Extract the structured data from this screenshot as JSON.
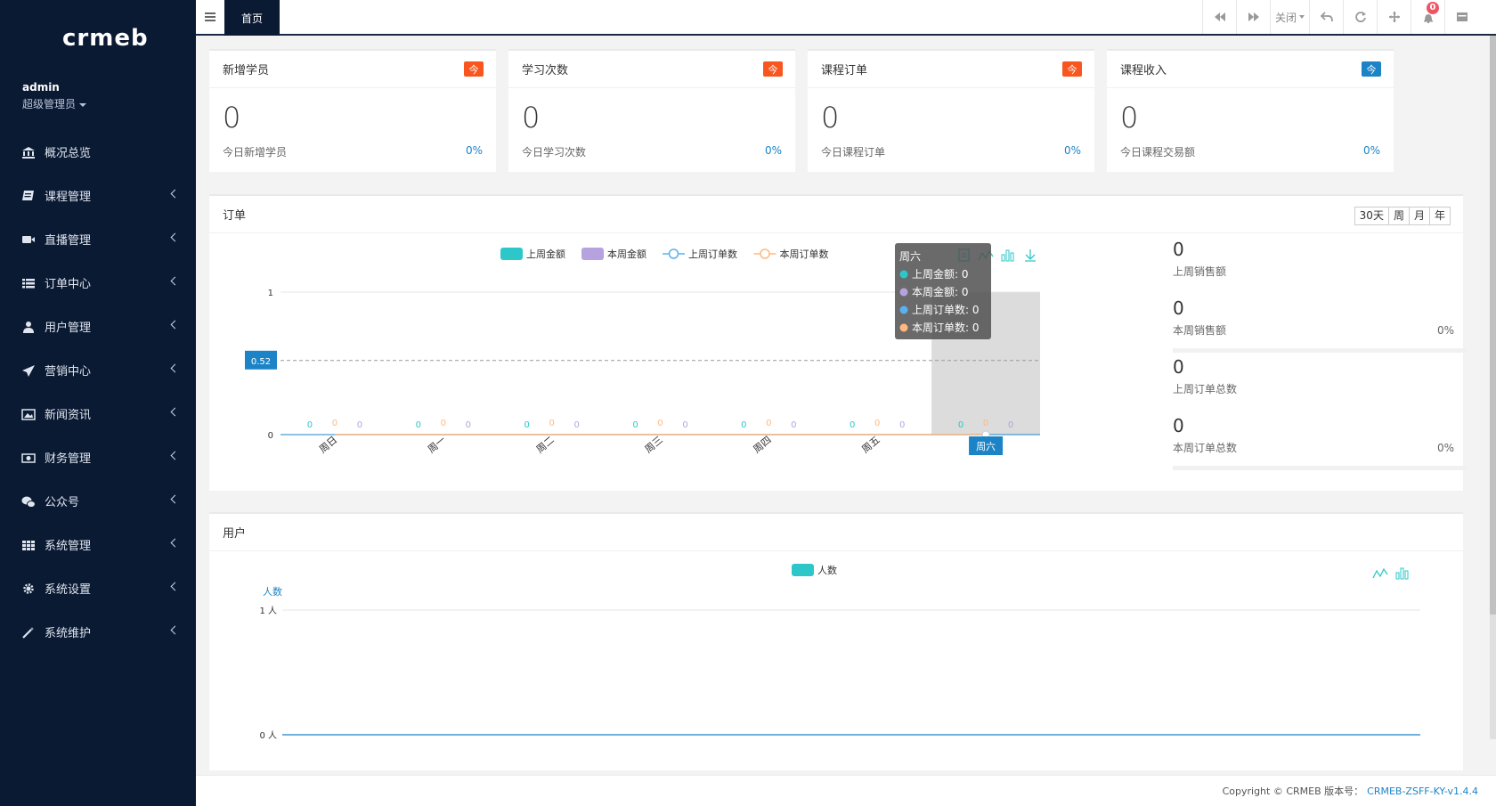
{
  "sidebar": {
    "logo": "crmeb",
    "user_name": "admin",
    "user_role": "超级管理员",
    "menu": [
      {
        "label": "概况总览",
        "icon": "bank-icon",
        "has_children": false
      },
      {
        "label": "课程管理",
        "icon": "book-icon",
        "has_children": true
      },
      {
        "label": "直播管理",
        "icon": "video-icon",
        "has_children": true
      },
      {
        "label": "订单中心",
        "icon": "list-icon",
        "has_children": true
      },
      {
        "label": "用户管理",
        "icon": "user-icon",
        "has_children": true
      },
      {
        "label": "营销中心",
        "icon": "paper-plane-icon",
        "has_children": true
      },
      {
        "label": "新闻资讯",
        "icon": "image-icon",
        "has_children": true
      },
      {
        "label": "财务管理",
        "icon": "money-icon",
        "has_children": true
      },
      {
        "label": "公众号",
        "icon": "wechat-icon",
        "has_children": true
      },
      {
        "label": "系统管理",
        "icon": "grid-icon",
        "has_children": true
      },
      {
        "label": "系统设置",
        "icon": "gear-icon",
        "has_children": true
      },
      {
        "label": "系统维护",
        "icon": "magic-icon",
        "has_children": true
      }
    ]
  },
  "topbar": {
    "home_tab": "首页",
    "close_label": "关闭",
    "notification_count": "0"
  },
  "stats": [
    {
      "title": "新增学员",
      "tag": "今",
      "tag_color": "#f8561e",
      "value": "0",
      "desc": "今日新增学员",
      "pct": "0%"
    },
    {
      "title": "学习次数",
      "tag": "今",
      "tag_color": "#f8561e",
      "value": "0",
      "desc": "今日学习次数",
      "pct": "0%"
    },
    {
      "title": "课程订单",
      "tag": "今",
      "tag_color": "#f8561e",
      "value": "0",
      "desc": "今日课程订单",
      "pct": "0%"
    },
    {
      "title": "课程收入",
      "tag": "今",
      "tag_color": "#1c84c6",
      "value": "0",
      "desc": "今日课程交易额",
      "pct": "0%"
    }
  ],
  "orders": {
    "title": "订单",
    "ranges": [
      "30天",
      "周",
      "月",
      "年"
    ],
    "side": [
      {
        "value": "0",
        "label": "上周销售额",
        "pct": ""
      },
      {
        "value": "0",
        "label": "本周销售额",
        "pct": "0%"
      },
      {
        "value": "0",
        "label": "上周订单总数",
        "pct": ""
      },
      {
        "value": "0",
        "label": "本周订单总数",
        "pct": "0%"
      }
    ],
    "tooltip": {
      "title": "周六",
      "rows": [
        "上周金额: 0",
        "本周金额: 0",
        "上周订单数: 0",
        "本周订单数: 0"
      ]
    },
    "mark_value": "0.52",
    "highlight_label": "周六"
  },
  "users": {
    "title": "用户",
    "ylabel": "人数"
  },
  "chart_data": [
    {
      "type": "bar",
      "categories": [
        "周日",
        "周一",
        "周二",
        "周三",
        "周四",
        "周五",
        "周六"
      ],
      "series": [
        {
          "name": "上周金额",
          "kind": "bar",
          "color": "#2ec7c9",
          "values": [
            0,
            0,
            0,
            0,
            0,
            0,
            0
          ]
        },
        {
          "name": "本周金额",
          "kind": "bar",
          "color": "#b6a2de",
          "values": [
            0,
            0,
            0,
            0,
            0,
            0,
            0
          ]
        },
        {
          "name": "上周订单数",
          "kind": "line",
          "color": "#5ab1ef",
          "values": [
            0,
            0,
            0,
            0,
            0,
            0,
            0
          ]
        },
        {
          "name": "本周订单数",
          "kind": "line",
          "color": "#ffb980",
          "values": [
            0,
            0,
            0,
            0,
            0,
            0,
            0
          ]
        }
      ],
      "yticks": [
        "0",
        "1"
      ],
      "ylim": [
        0,
        1
      ],
      "mark_line": 0.52,
      "legend": "top"
    },
    {
      "type": "area",
      "series": [
        {
          "name": "人数",
          "color": "#2ec7c9",
          "values": [
            0
          ]
        }
      ],
      "ylabel": "人数",
      "yticks": [
        "0 人",
        "1 人"
      ],
      "ylim": [
        0,
        1
      ],
      "legend": "top"
    }
  ],
  "footer": {
    "copyright": "Copyright © CRMEB 版本号：",
    "version": "CRMEB-ZSFF-KY-v1.4.4"
  }
}
